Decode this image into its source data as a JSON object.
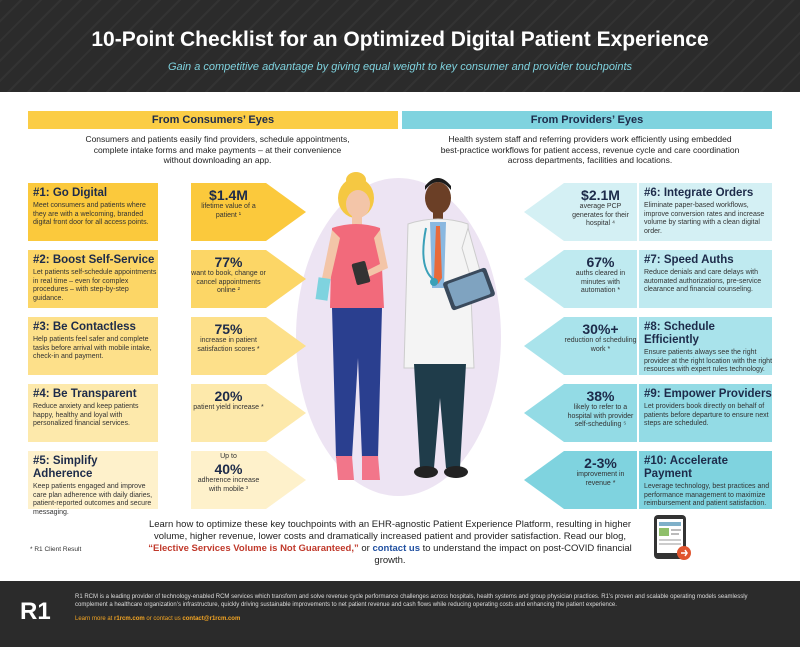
{
  "header": {
    "title": "10-Point Checklist for an Optimized Digital Patient Experience",
    "subtitle": "Gain a competitive advantage by giving equal weight to key consumer and provider touchpoints"
  },
  "consumers": {
    "heading": "From Consumers’ Eyes",
    "desc": "Consumers and patients easily find providers, schedule appointments, complete intake forms and make payments – at their convenience without downloading an app.",
    "rows": [
      {
        "title": "#1: Go Digital",
        "body": "Meet consumers and patients where they are with a welcoming, branded digital front door for all access points.",
        "pre": "",
        "stat": "$1.4M",
        "stat_text": "lifetime value of a patient ¹"
      },
      {
        "title": "#2: Boost Self-Service",
        "body": "Let patients self-schedule appointments in real time – even for complex procedures – with step-by-step guidance.",
        "pre": "",
        "stat": "77%",
        "stat_text": "want to book, change or cancel appointments online ²"
      },
      {
        "title": "#3: Be Contactless",
        "body": "Help patients feel safer and complete tasks before arrival with mobile intake, check-in and payment.",
        "pre": "",
        "stat": "75%",
        "stat_text": "increase in patient satisfaction scores *"
      },
      {
        "title": "#4: Be Transparent",
        "body": "Reduce anxiety and keep patients happy, healthy and loyal with personalized financial services.",
        "pre": "",
        "stat": "20%",
        "stat_text": "patient yield increase *"
      },
      {
        "title": "#5: Simplify Adherence",
        "body": "Keep patients engaged and improve care plan adherence with daily diaries, patient-reported outcomes and secure messaging.",
        "pre": "Up to",
        "stat": "40%",
        "stat_text": "adherence increase with mobile ³"
      }
    ]
  },
  "providers": {
    "heading": "From Providers’ Eyes",
    "desc": "Health system staff and referring providers work efficiently using embedded best-practice workflows for patient access, revenue cycle and care coordination across departments, facilities and locations.",
    "rows": [
      {
        "title": "#6: Integrate Orders",
        "body": "Eliminate paper-based workflows, improve conversion rates and increase volume by starting with a clean digital order.",
        "stat": "$2.1M",
        "stat_text": "average PCP generates for their hospital ⁴"
      },
      {
        "title": "#7: Speed Auths",
        "body": "Reduce denials and care delays with automated authorizations, pre-service clearance and financial counseling.",
        "stat": "67%",
        "stat_text": "auths cleared in minutes with automation *"
      },
      {
        "title": "#8: Schedule Efficiently",
        "body": "Ensure patients always see the right provider at the right location with the right resources with expert rules technology.",
        "stat": "30%+",
        "stat_text": "reduction of scheduling work *"
      },
      {
        "title": "#9: Empower Providers",
        "body": "Let providers book directly on behalf of patients before departure to ensure next steps are scheduled.",
        "stat": "38%",
        "stat_text": "likely to refer to a hospital with provider self-scheduling ⁵"
      },
      {
        "title": "#10: Accelerate Payment",
        "body": "Leverage technology, best practices and performance management to maximize reimbursement and patient satisfaction.",
        "stat": "2-3%",
        "stat_text": "improvement in revenue *"
      }
    ]
  },
  "cta": {
    "line1": "Learn how to optimize these key touchpoints with an EHR-agnostic Patient Experience Platform, resulting in higher volume, higher revenue, lower costs and dramatically increased patient and provider satisfaction. Read our blog,",
    "link1": "“Elective Services Volume is Not Guaranteed,”",
    "mid": " or ",
    "link2": "contact us",
    "end": " to understand the impact on post-COVID financial growth."
  },
  "footnote": "* R1 Client Result",
  "footer": {
    "logo": "R1",
    "text": "R1 RCM is a leading provider of technology-enabled RCM services which transform and solve revenue cycle performance challenges across hospitals, health systems and group physician practices. R1’s proven and scalable operating models seamlessly complement a healthcare organization’s infrastructure, quickly driving sustainable improvements to net patient revenue and cash flows while reducing operating costs and enhancing the patient experience.",
    "learn": "Learn more at",
    "site": "r1rcm.com",
    "or": "or contact us",
    "email": "contact@r1rcm.com"
  },
  "colors": {
    "yellow1": "#fbc93c",
    "yellow2": "#fcd666",
    "yellow3": "#fde08a",
    "yellow4": "#fde9ab",
    "yellow5": "#fef1cb",
    "cyan1": "#7fd3df",
    "cyan2": "#93dbe5",
    "cyan3": "#a9e3eb",
    "cyan4": "#bfeaf0",
    "cyan5": "#d4f0f4"
  }
}
